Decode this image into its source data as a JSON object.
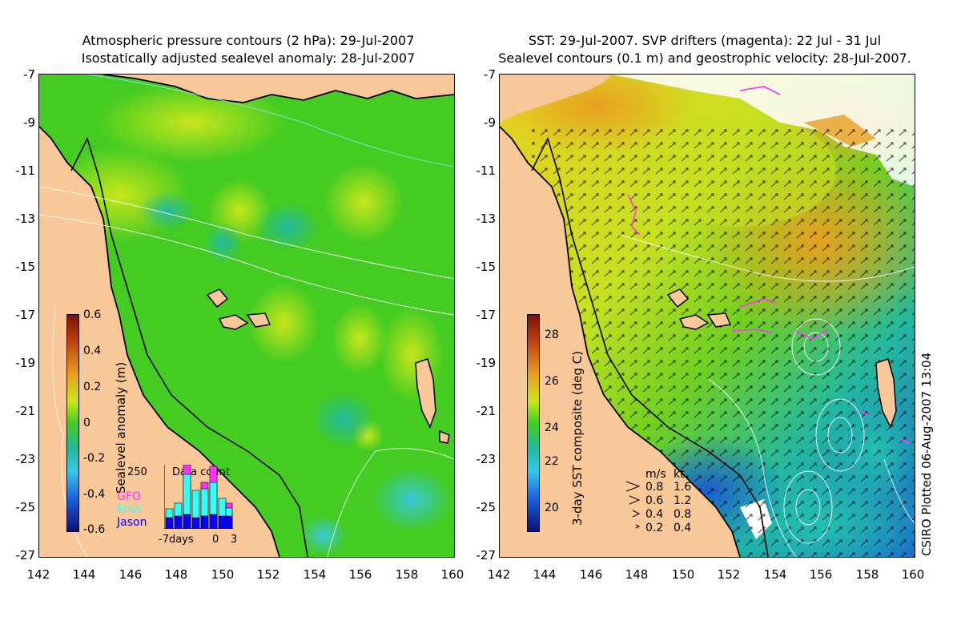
{
  "left_panel": {
    "title_line1": "Atmospheric pressure contours (2 hPa): 29-Jul-2007",
    "title_line2": "Isostatically adjusted sealevel anomaly: 28-Jul-2007",
    "colorbar_label": "Sealevel anomaly (m)",
    "colorbar_ticks": [
      "0.6",
      "0.4",
      "0.2",
      "0",
      "-0.2",
      "-0.4",
      "-0.6"
    ],
    "histogram": {
      "title": "Data count",
      "y_tick": "250",
      "x_ticks": [
        "-7days",
        "0",
        "3"
      ],
      "series": [
        {
          "name": "GFO",
          "color": "#ff33ff"
        },
        {
          "name": "Envi",
          "color": "#33ffff"
        },
        {
          "name": "Jason",
          "color": "#0000ff"
        }
      ]
    }
  },
  "right_panel": {
    "title_line1": "SST: 29-Jul-2007. SVP drifters (magenta): 22 Jul - 31 Jul",
    "title_line2": "Sealevel contours (0.1 m) and geostrophic velocity: 28-Jul-2007.",
    "colorbar_label": "3-day SST composite (deg C)",
    "colorbar_ticks": [
      "28",
      "26",
      "24",
      "22",
      "20"
    ],
    "speed_legend": {
      "header_ms": "m/s",
      "header_kt": "kt",
      "rows": [
        {
          "ms": "0.8",
          "kt": "1.6"
        },
        {
          "ms": "0.6",
          "kt": "1.2"
        },
        {
          "ms": "0.4",
          "kt": "0.8"
        },
        {
          "ms": "0.2",
          "kt": "0.4"
        }
      ]
    },
    "plotted_label": "CSIRO Plotted 06-Aug-2007 13:04"
  },
  "axes": {
    "y_ticks": [
      "-7",
      "-9",
      "-11",
      "-13",
      "-15",
      "-17",
      "-19",
      "-21",
      "-23",
      "-25",
      "-27"
    ],
    "x_ticks": [
      "142",
      "144",
      "146",
      "148",
      "150",
      "152",
      "154",
      "156",
      "158",
      "160"
    ]
  },
  "colors": {
    "land": "#f9c898",
    "ocean_sla": "#44cc22",
    "sst_warm": "#e8a020",
    "sst_cool": "#1a5cd0",
    "drifter": "#ff33ff"
  }
}
